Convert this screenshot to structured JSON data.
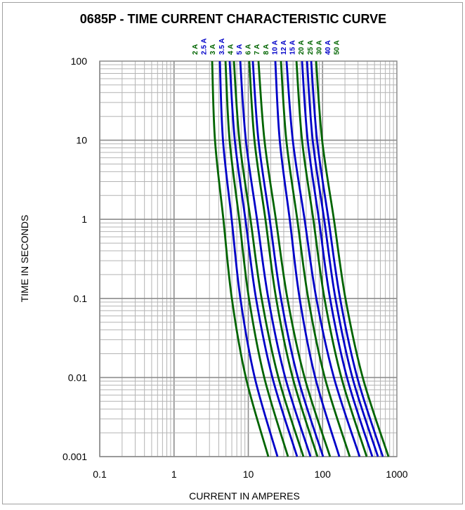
{
  "chart_data": {
    "type": "line",
    "title": "0685P - TIME CURRENT CHARACTERISTIC CURVE",
    "xlabel": "CURRENT IN AMPERES",
    "ylabel": "TIME IN SECONDS",
    "x_scale": "log",
    "y_scale": "log",
    "xlim": [
      0.1,
      1000
    ],
    "ylim": [
      0.001,
      100
    ],
    "x_ticks": [
      "0.1",
      "1",
      "10",
      "100",
      "1000"
    ],
    "y_ticks": [
      "100",
      "10",
      "1",
      "0.1",
      "0.01",
      "0.001"
    ],
    "grid": true,
    "legend": "series labels rotated above plot at top of each curve",
    "colors": {
      "green": "#006400",
      "blue": "#0000c8",
      "grid": "#b4b4b4",
      "grid_major": "#8c8c8c"
    },
    "time_points": [
      100,
      10,
      1,
      0.1,
      0.01,
      0.001
    ],
    "series": [
      {
        "name": "2 A",
        "color": "#006400",
        "label_color": "#006400",
        "current": [
          3.26,
          3.56,
          4.62,
          6.0,
          9.27,
          18.6
        ]
      },
      {
        "name": "2.5 A",
        "color": "#0000c8",
        "label_color": "#0000c8",
        "current": [
          4.14,
          4.56,
          5.97,
          7.82,
          12.2,
          24.7
        ]
      },
      {
        "name": "3 A",
        "color": "#006400",
        "label_color": "#006400",
        "current": [
          4.93,
          5.6,
          7.55,
          10.2,
          16.4,
          34.2
        ]
      },
      {
        "name": "3.5 A",
        "color": "#0000c8",
        "label_color": "#0000c8",
        "current": [
          5.61,
          6.58,
          9.14,
          12.7,
          21.1,
          45.4
        ]
      },
      {
        "name": "4 A",
        "color": "#006400",
        "label_color": "#006400",
        "current": [
          6.4,
          7.59,
          10.7,
          15.1,
          25.4,
          55.2
        ]
      },
      {
        "name": "5 A",
        "color": "#0000c8",
        "label_color": "#0000c8",
        "current": [
          7.78,
          9.27,
          13.1,
          18.6,
          31.4,
          68.7
        ]
      },
      {
        "name": "6 A",
        "color": "#006400",
        "label_color": "#006400",
        "current": [
          10.3,
          12.1,
          17.0,
          23.7,
          39.5,
          85.3
        ]
      },
      {
        "name": "7 A",
        "color": "#0000c8",
        "label_color": "#006400",
        "current": [
          11.5,
          13.7,
          19.4,
          27.5,
          46.4,
          101.6
        ]
      },
      {
        "name": "8 A",
        "color": "#006400",
        "label_color": "#006400",
        "current": [
          13.7,
          16.5,
          23.5,
          33.6,
          57.2,
          126
        ]
      },
      {
        "name": "10 A",
        "color": "#0000c8",
        "label_color": "#0000c8",
        "current": [
          23.1,
          26.5,
          36.1,
          49.1,
          79.6,
          168
        ]
      },
      {
        "name": "12 A",
        "color": "#006400",
        "label_color": "#0000c8",
        "current": [
          27.5,
          32.5,
          45.6,
          64.1,
          107,
          232
        ]
      },
      {
        "name": "15 A",
        "color": "#0000c8",
        "label_color": "#0000c8",
        "current": [
          32.7,
          39.7,
          57.2,
          82.4,
          142,
          315
        ]
      },
      {
        "name": "20 A",
        "color": "#006400",
        "label_color": "#006400",
        "current": [
          44.5,
          52.9,
          75,
          106,
          179,
          392
        ]
      },
      {
        "name": "25 A",
        "color": "#0000c8",
        "label_color": "#006400",
        "current": [
          52.9,
          63,
          89.2,
          126,
          213,
          467
        ]
      },
      {
        "name": "30 A",
        "color": "#0000c8",
        "label_color": "#006400",
        "current": [
          61.7,
          73.6,
          105,
          149,
          252,
          556
        ]
      },
      {
        "name": "40 A",
        "color": "#0000c8",
        "label_color": "#0000c8",
        "current": [
          70.2,
          84.3,
          120,
          172,
          293,
          647
        ]
      },
      {
        "name": "50 A",
        "color": "#006400",
        "label_color": "#006400",
        "current": [
          81.8,
          98.6,
          142,
          203,
          347,
          771
        ]
      }
    ]
  }
}
